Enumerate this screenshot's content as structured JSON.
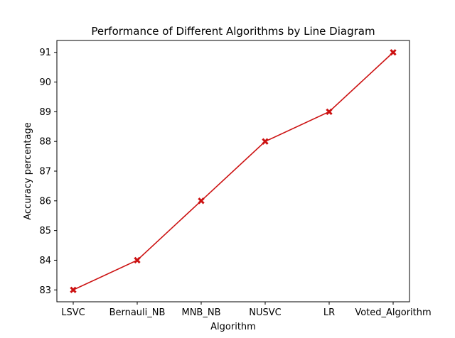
{
  "chart_data": {
    "type": "line",
    "title": "Performance of Different Algorithms by Line Diagram",
    "xlabel": "Algorithm",
    "ylabel": "Accuracy percentage",
    "categories": [
      "LSVC",
      "Bernauli_NB",
      "MNB_NB",
      "NUSVC",
      "LR",
      "Voted_Algorithm"
    ],
    "series": [
      {
        "values": [
          83,
          84,
          86,
          88,
          89,
          91
        ],
        "color": "#cc1111",
        "marker": "x"
      }
    ],
    "ylim": [
      82.6,
      91.4
    ],
    "yticks": [
      83,
      84,
      85,
      86,
      87,
      88,
      89,
      90,
      91
    ],
    "grid": false,
    "legend": "none"
  }
}
